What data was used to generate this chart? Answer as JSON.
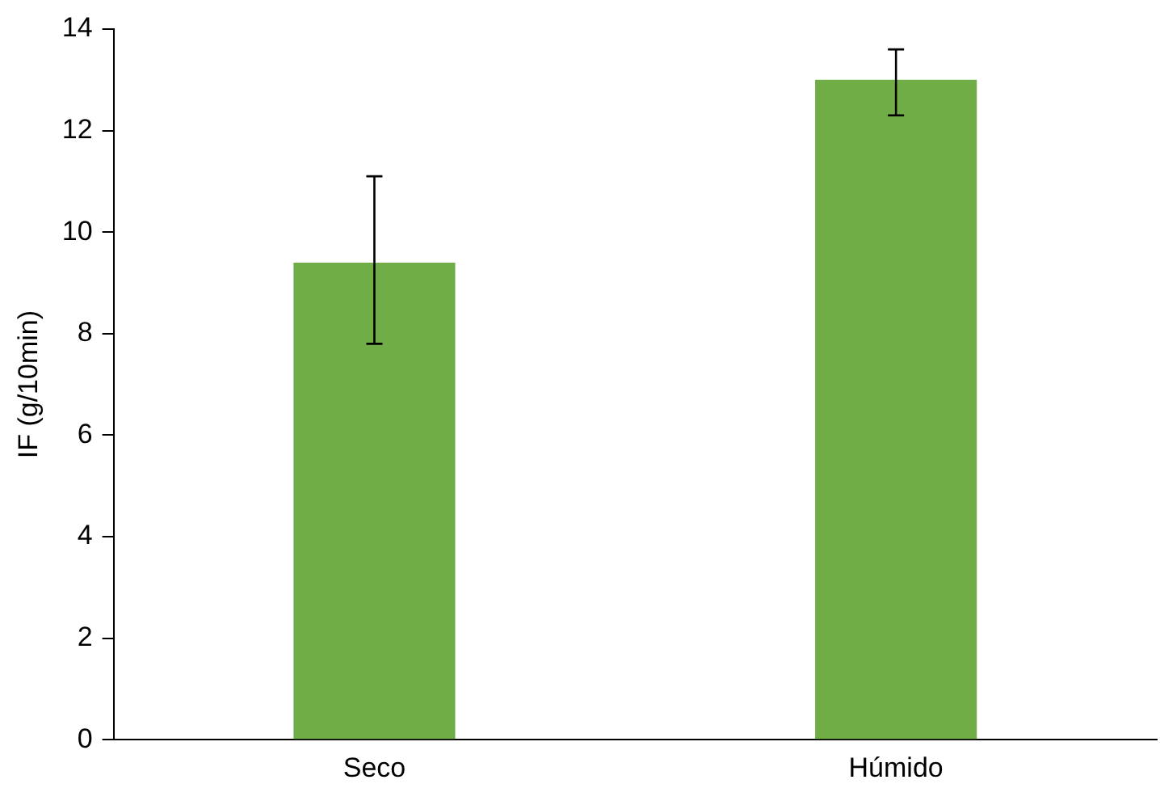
{
  "chart_data": {
    "type": "bar",
    "ylabel": "IF (g/10min)",
    "categories": [
      "Seco",
      "Húmido"
    ],
    "values": [
      9.4,
      13.0
    ],
    "errors": [
      [
        7.8,
        11.1
      ],
      [
        12.3,
        13.6
      ]
    ],
    "color": "#70ad47",
    "ylim": [
      0,
      14
    ],
    "yticks": [
      0,
      2,
      4,
      6,
      8,
      10,
      12,
      14
    ],
    "grid": false,
    "legend": false
  }
}
